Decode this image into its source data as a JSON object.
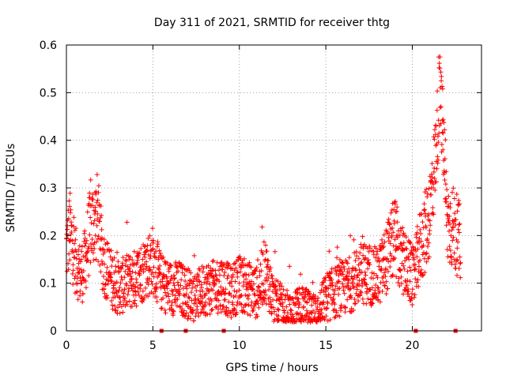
{
  "chart_data": {
    "type": "scatter",
    "title": "Day 311 of 2021, SRMTID for receiver thtg",
    "xlabel": "GPS time / hours",
    "ylabel": "SRMTID / TECUs",
    "xlim": [
      0,
      24
    ],
    "ylim": [
      0,
      0.6
    ],
    "xticks": [
      "0",
      "5",
      "10",
      "15",
      "20"
    ],
    "xtick_values": [
      0,
      5,
      10,
      15,
      20
    ],
    "yticks": [
      "0",
      "0.1",
      "0.2",
      "0.3",
      "0.4",
      "0.5",
      "0.6"
    ],
    "ytick_values": [
      0,
      0.1,
      0.2,
      0.3,
      0.4,
      0.5,
      0.6
    ],
    "grid": true,
    "marker": "plus",
    "color": "#ff0000",
    "trend": [
      [
        0.0,
        0.17
      ],
      [
        0.2,
        0.21
      ],
      [
        0.5,
        0.15
      ],
      [
        0.8,
        0.12
      ],
      [
        1.0,
        0.13
      ],
      [
        1.4,
        0.22
      ],
      [
        1.8,
        0.24
      ],
      [
        2.1,
        0.15
      ],
      [
        2.6,
        0.11
      ],
      [
        3.0,
        0.09
      ],
      [
        3.5,
        0.1
      ],
      [
        4.0,
        0.11
      ],
      [
        4.5,
        0.13
      ],
      [
        5.0,
        0.15
      ],
      [
        5.5,
        0.1
      ],
      [
        6.0,
        0.09
      ],
      [
        6.5,
        0.09
      ],
      [
        7.0,
        0.08
      ],
      [
        7.5,
        0.07
      ],
      [
        8.0,
        0.09
      ],
      [
        8.5,
        0.09
      ],
      [
        9.0,
        0.1
      ],
      [
        9.5,
        0.08
      ],
      [
        10.0,
        0.1
      ],
      [
        10.5,
        0.09
      ],
      [
        11.0,
        0.08
      ],
      [
        11.5,
        0.13
      ],
      [
        12.0,
        0.06
      ],
      [
        12.5,
        0.05
      ],
      [
        13.0,
        0.03
      ],
      [
        13.5,
        0.05
      ],
      [
        14.0,
        0.04
      ],
      [
        14.5,
        0.03
      ],
      [
        15.0,
        0.07
      ],
      [
        15.5,
        0.08
      ],
      [
        16.0,
        0.09
      ],
      [
        16.5,
        0.1
      ],
      [
        17.0,
        0.12
      ],
      [
        17.5,
        0.12
      ],
      [
        18.0,
        0.11
      ],
      [
        18.5,
        0.15
      ],
      [
        19.0,
        0.2
      ],
      [
        19.3,
        0.15
      ],
      [
        19.7,
        0.13
      ],
      [
        20.1,
        0.11
      ],
      [
        20.4,
        0.17
      ],
      [
        20.7,
        0.2
      ],
      [
        21.0,
        0.25
      ],
      [
        21.3,
        0.35
      ],
      [
        21.6,
        0.5
      ],
      [
        21.8,
        0.4
      ],
      [
        22.0,
        0.23
      ],
      [
        22.3,
        0.22
      ],
      [
        22.6,
        0.2
      ],
      [
        22.8,
        0.18
      ]
    ],
    "gap_markers_x": [
      5.5,
      6.9,
      9.1,
      20.2,
      22.5
    ]
  }
}
